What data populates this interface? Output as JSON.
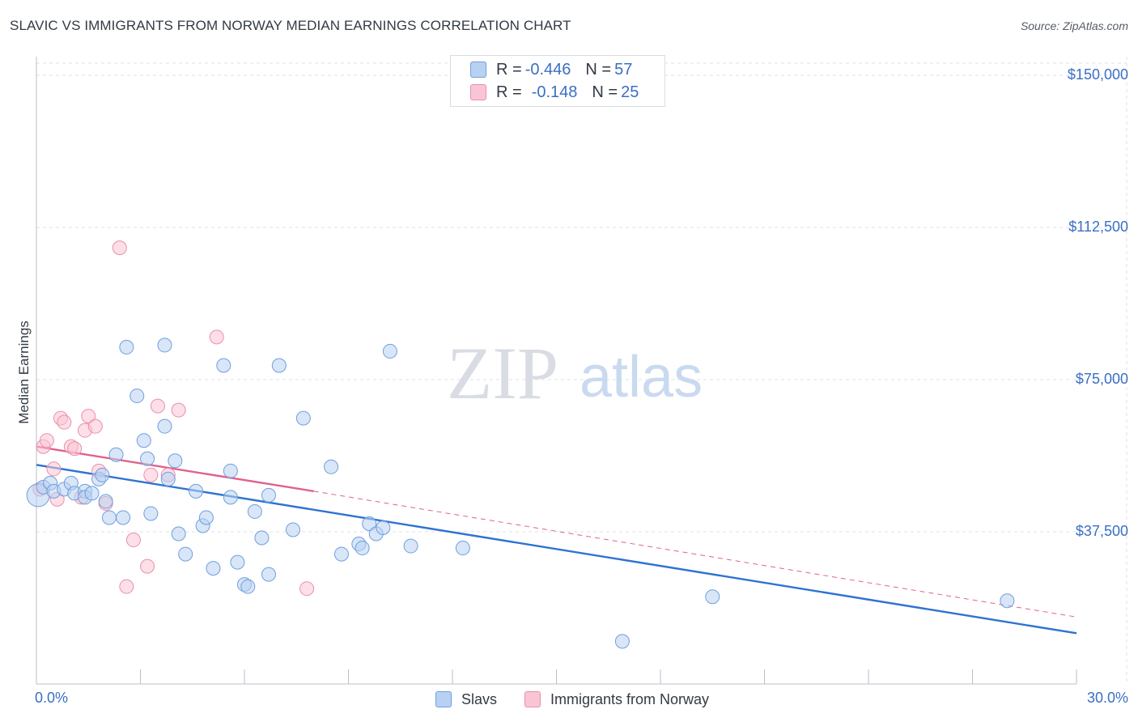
{
  "header": {
    "title": "SLAVIC VS IMMIGRANTS FROM NORWAY MEDIAN EARNINGS CORRELATION CHART",
    "source": "Source: ZipAtlas.com"
  },
  "watermark": {
    "zip": "ZIP",
    "atlas": "atlas"
  },
  "legend_top": [
    {
      "r_label": "R =",
      "r_value": "-0.446",
      "n_label": "N =",
      "n_value": "57"
    },
    {
      "r_label": "R =",
      "r_value": "-0.148",
      "n_label": "N =",
      "n_value": "25"
    }
  ],
  "colors": {
    "slavs_fill": "#b8d1f2",
    "slavs_stroke": "#6f9fdc",
    "slavs_line": "#2e73d1",
    "norway_fill": "#f9c5d4",
    "norway_stroke": "#ea8fab",
    "norway_line": "#e0628c",
    "tick_label": "#3a6fc4",
    "grid": "#dde1e6"
  },
  "chart_data": {
    "type": "scatter",
    "title": "SLAVIC VS IMMIGRANTS FROM NORWAY MEDIAN EARNINGS CORRELATION CHART",
    "xlabel": "",
    "ylabel": "Median Earnings",
    "xlim": [
      0,
      30
    ],
    "ylim": [
      0,
      153000
    ],
    "x_tick_labels": [
      "0.0%",
      "30.0%"
    ],
    "y_ticks": [
      37500,
      75000,
      112500,
      150000
    ],
    "y_tick_labels": [
      "$37,500",
      "$75,000",
      "$112,500",
      "$150,000"
    ],
    "grid": true,
    "legend_position": "bottom",
    "series": [
      {
        "name": "Slavs",
        "r": -0.446,
        "n": 57,
        "trend": {
          "x": [
            0,
            30
          ],
          "y": [
            54000,
            12500
          ]
        },
        "points": [
          [
            0.05,
            46500
          ],
          [
            0.2,
            48500
          ],
          [
            0.4,
            49500
          ],
          [
            0.5,
            47500
          ],
          [
            0.8,
            48000
          ],
          [
            1.0,
            49500
          ],
          [
            1.1,
            47000
          ],
          [
            1.4,
            47500
          ],
          [
            1.4,
            46000
          ],
          [
            1.6,
            47000
          ],
          [
            1.8,
            50500
          ],
          [
            1.9,
            51500
          ],
          [
            2.0,
            45000
          ],
          [
            2.1,
            41000
          ],
          [
            2.3,
            56500
          ],
          [
            2.5,
            41000
          ],
          [
            2.6,
            83000
          ],
          [
            2.9,
            71000
          ],
          [
            3.1,
            60000
          ],
          [
            3.2,
            55500
          ],
          [
            3.3,
            42000
          ],
          [
            3.7,
            63500
          ],
          [
            3.7,
            83500
          ],
          [
            3.8,
            50500
          ],
          [
            4.0,
            55000
          ],
          [
            4.1,
            37000
          ],
          [
            4.3,
            32000
          ],
          [
            4.6,
            47500
          ],
          [
            4.8,
            39000
          ],
          [
            4.9,
            41000
          ],
          [
            5.1,
            28500
          ],
          [
            5.4,
            78500
          ],
          [
            5.6,
            46000
          ],
          [
            5.6,
            52500
          ],
          [
            5.8,
            30000
          ],
          [
            6.0,
            24500
          ],
          [
            6.1,
            24000
          ],
          [
            6.3,
            42500
          ],
          [
            6.5,
            36000
          ],
          [
            6.7,
            27000
          ],
          [
            6.7,
            46500
          ],
          [
            7.0,
            78500
          ],
          [
            7.4,
            38000
          ],
          [
            7.7,
            65500
          ],
          [
            8.5,
            53500
          ],
          [
            8.8,
            32000
          ],
          [
            9.3,
            34500
          ],
          [
            9.4,
            33500
          ],
          [
            9.6,
            39500
          ],
          [
            9.8,
            37000
          ],
          [
            10.0,
            38500
          ],
          [
            10.2,
            82000
          ],
          [
            10.8,
            34000
          ],
          [
            12.3,
            33500
          ],
          [
            16.9,
            10500
          ],
          [
            19.5,
            21500
          ],
          [
            28.0,
            20500
          ]
        ]
      },
      {
        "name": "Immigrants from Norway",
        "r": -0.148,
        "n": 25,
        "trend": {
          "x": [
            0,
            8
          ],
          "y": [
            58500,
            47500
          ],
          "dashed_to": {
            "x": 30,
            "y": 16500
          }
        },
        "points": [
          [
            0.1,
            48000
          ],
          [
            0.2,
            58500
          ],
          [
            0.3,
            60000
          ],
          [
            0.5,
            53000
          ],
          [
            0.6,
            45500
          ],
          [
            0.7,
            65500
          ],
          [
            0.8,
            64500
          ],
          [
            1.0,
            58500
          ],
          [
            1.1,
            58000
          ],
          [
            1.3,
            46000
          ],
          [
            1.4,
            62500
          ],
          [
            1.5,
            66000
          ],
          [
            1.7,
            63500
          ],
          [
            1.8,
            52500
          ],
          [
            2.0,
            44500
          ],
          [
            2.4,
            107500
          ],
          [
            2.6,
            24000
          ],
          [
            2.8,
            35500
          ],
          [
            3.2,
            29000
          ],
          [
            3.3,
            51500
          ],
          [
            3.5,
            68500
          ],
          [
            3.8,
            51500
          ],
          [
            4.1,
            67500
          ],
          [
            5.2,
            85500
          ],
          [
            7.8,
            23500
          ]
        ]
      }
    ]
  }
}
